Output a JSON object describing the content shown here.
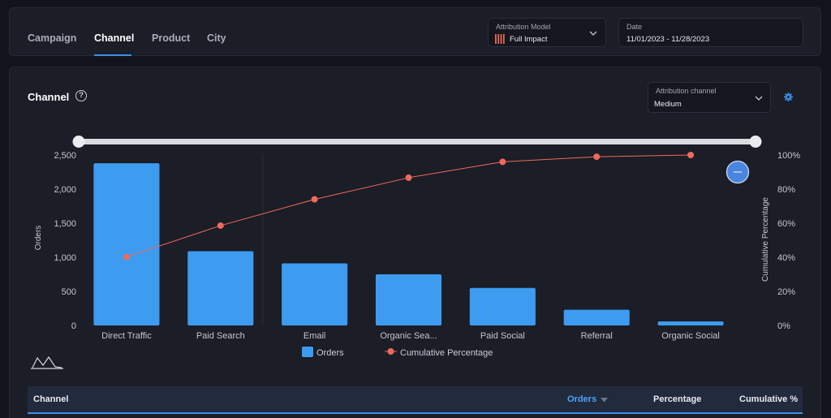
{
  "nav": {
    "tabs": [
      {
        "label": "Campaign"
      },
      {
        "label": "Channel"
      },
      {
        "label": "Product"
      },
      {
        "label": "City"
      }
    ],
    "active_tab": "Channel"
  },
  "filters": {
    "attribution_model": {
      "label": "Attribution Model",
      "value": "Full Impact"
    },
    "date": {
      "label": "Date",
      "value": "11/01/2023 - 11/28/2023"
    }
  },
  "panel": {
    "title": "Channel",
    "attribution_channel": {
      "label": "Attribution channel",
      "value": "Medium"
    }
  },
  "colors": {
    "bar": "#3d9bf0",
    "line": "#ef6a5a",
    "accent": "#3b8fe8"
  },
  "chart_data": {
    "type": "bar",
    "categories": [
      "Direct Traffic",
      "Paid Search",
      "Email",
      "Organic Sea...",
      "Paid Social",
      "Referral",
      "Organic Social"
    ],
    "series": [
      {
        "name": "Orders",
        "type": "bar",
        "axis": "left",
        "values": [
          2380,
          1090,
          910,
          750,
          550,
          230,
          60
        ]
      },
      {
        "name": "Cumulative Percentage",
        "type": "line",
        "axis": "right",
        "values": [
          40.2,
          58.6,
          74.0,
          86.7,
          96.0,
          99.0,
          100.0
        ]
      }
    ],
    "ylabel": "Orders",
    "ylabel_right": "Cumulative Percentage",
    "ylim": [
      0,
      2500
    ],
    "ylim_right": [
      0,
      100
    ],
    "yticks": [
      "2,500",
      "2,000",
      "1,500",
      "1,000",
      "500",
      "0"
    ],
    "yticks_right": [
      "100%",
      "80%",
      "60%",
      "40%",
      "20%",
      "0%"
    ],
    "legend_position": "bottom",
    "grid": false
  },
  "table": {
    "columns": [
      {
        "label": "Channel"
      },
      {
        "label": "Orders"
      },
      {
        "label": "Percentage"
      },
      {
        "label": "Cumulative %"
      }
    ]
  }
}
